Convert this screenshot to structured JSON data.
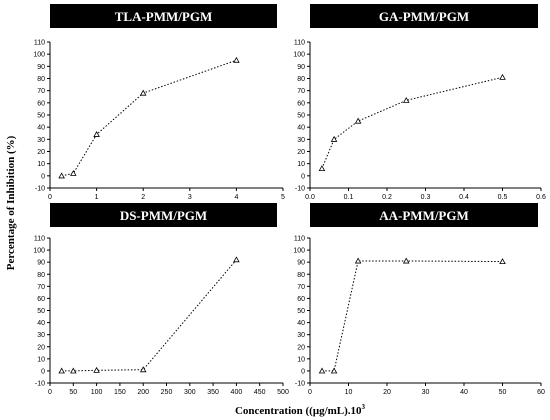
{
  "ylabel": "Percentage of Inhibition (%)",
  "xlabel": "Concentration ((μg/mL).10",
  "xlabel_sup": "3",
  "chart_data": [
    {
      "type": "line",
      "title": "TLA-PMM/PGM",
      "x": [
        0.25,
        0.5,
        1,
        2,
        4
      ],
      "y": [
        0,
        2,
        34,
        68,
        95
      ],
      "xlim": [
        0,
        5
      ],
      "ylim": [
        -10,
        110
      ],
      "xticks": [
        0,
        1,
        2,
        3,
        4,
        5
      ],
      "xtick_labels": [
        "0",
        "1",
        "2",
        "3",
        "4",
        "5"
      ],
      "yticks": [
        -10,
        0,
        10,
        20,
        30,
        40,
        50,
        60,
        70,
        80,
        90,
        100,
        110
      ],
      "ytick_labels": [
        "-10",
        "0",
        "10",
        "20",
        "30",
        "40",
        "50",
        "60",
        "70",
        "80",
        "90",
        "100",
        "110"
      ]
    },
    {
      "type": "line",
      "title": "GA-PMM/PGM",
      "x": [
        0.031,
        0.0625,
        0.125,
        0.25,
        0.5
      ],
      "y": [
        6,
        30,
        45,
        62,
        81
      ],
      "xlim": [
        0,
        0.6
      ],
      "ylim": [
        -10,
        110
      ],
      "xticks": [
        0,
        0.1,
        0.2,
        0.3,
        0.4,
        0.5,
        0.6
      ],
      "xtick_labels": [
        "0.0",
        "0.1",
        "0.2",
        "0.3",
        "0.4",
        "0.5",
        "0.6"
      ],
      "yticks": [
        -10,
        0,
        10,
        20,
        30,
        40,
        50,
        60,
        70,
        80,
        90,
        100,
        110
      ],
      "ytick_labels": [
        "-10",
        "0",
        "10",
        "20",
        "30",
        "40",
        "50",
        "60",
        "70",
        "80",
        "90",
        "100",
        "110"
      ]
    },
    {
      "type": "line",
      "title": "DS-PMM/PGM",
      "x": [
        25,
        50,
        100,
        200,
        400
      ],
      "y": [
        0,
        0,
        0.5,
        1,
        92
      ],
      "xlim": [
        0,
        500
      ],
      "ylim": [
        -10,
        110
      ],
      "xticks": [
        0,
        50,
        100,
        150,
        200,
        250,
        300,
        350,
        400,
        450,
        500
      ],
      "xtick_labels": [
        "0",
        "50",
        "100",
        "150",
        "200",
        "250",
        "300",
        "350",
        "400",
        "450",
        "500"
      ],
      "yticks": [
        -10,
        0,
        10,
        20,
        30,
        40,
        50,
        60,
        70,
        80,
        90,
        100,
        110
      ],
      "ytick_labels": [
        "-10",
        "0",
        "10",
        "20",
        "30",
        "40",
        "50",
        "60",
        "70",
        "80",
        "90",
        "100",
        "110"
      ]
    },
    {
      "type": "line",
      "title": "AA-PMM/PGM",
      "x": [
        3.125,
        6.25,
        12.5,
        25,
        50
      ],
      "y": [
        0,
        0,
        91,
        91,
        90.5
      ],
      "xlim": [
        0,
        60
      ],
      "ylim": [
        -10,
        110
      ],
      "xticks": [
        0,
        10,
        20,
        30,
        40,
        50,
        60
      ],
      "xtick_labels": [
        "0",
        "10",
        "20",
        "30",
        "40",
        "50",
        "60"
      ],
      "yticks": [
        -10,
        0,
        10,
        20,
        30,
        40,
        50,
        60,
        70,
        80,
        90,
        100,
        110
      ],
      "ytick_labels": [
        "-10",
        "0",
        "10",
        "20",
        "30",
        "40",
        "50",
        "60",
        "70",
        "80",
        "90",
        "100",
        "110"
      ]
    }
  ]
}
